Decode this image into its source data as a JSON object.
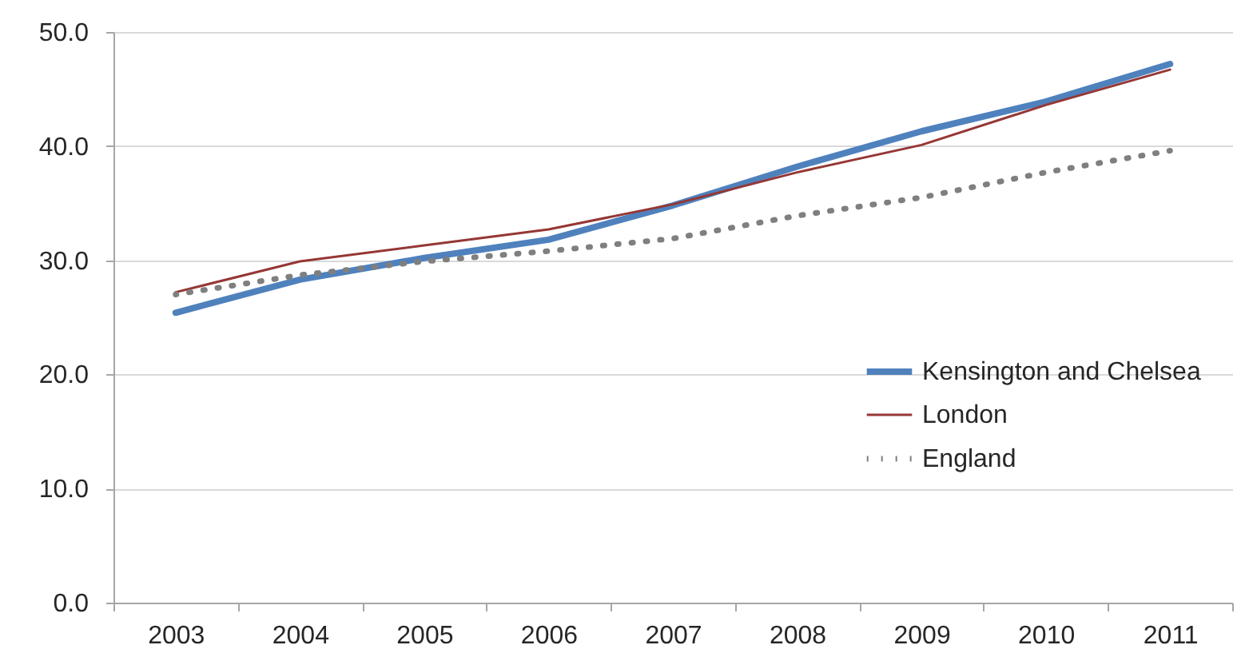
{
  "chart_data": {
    "type": "line",
    "categories": [
      "2003",
      "2004",
      "2005",
      "2006",
      "2007",
      "2008",
      "2009",
      "2010",
      "2011"
    ],
    "series": [
      {
        "name": "Kensington and Chelsea",
        "color": "#4f81bd",
        "line_style": "solid",
        "values": [
          25.4,
          28.3,
          30.2,
          31.8,
          34.8,
          38.2,
          41.3,
          43.9,
          47.2
        ]
      },
      {
        "name": "London",
        "color": "#953735",
        "line_style": "solid",
        "values": [
          27.2,
          29.9,
          31.3,
          32.7,
          34.9,
          37.7,
          40.1,
          43.6,
          46.7
        ]
      },
      {
        "name": "England",
        "color": "#7f7f7f",
        "line_style": "dotted",
        "values": [
          27.0,
          28.7,
          29.9,
          30.8,
          31.9,
          33.9,
          35.5,
          37.7,
          39.6
        ]
      }
    ],
    "ylim": [
      0,
      50
    ],
    "yticks": [
      {
        "value": 0,
        "label": "0.0"
      },
      {
        "value": 10,
        "label": "10.0"
      },
      {
        "value": 20,
        "label": "20.0"
      },
      {
        "value": 30,
        "label": "30.0"
      },
      {
        "value": 40,
        "label": "40.0"
      },
      {
        "value": 50,
        "label": "50.0"
      }
    ],
    "grid": "y",
    "legend": "right"
  }
}
